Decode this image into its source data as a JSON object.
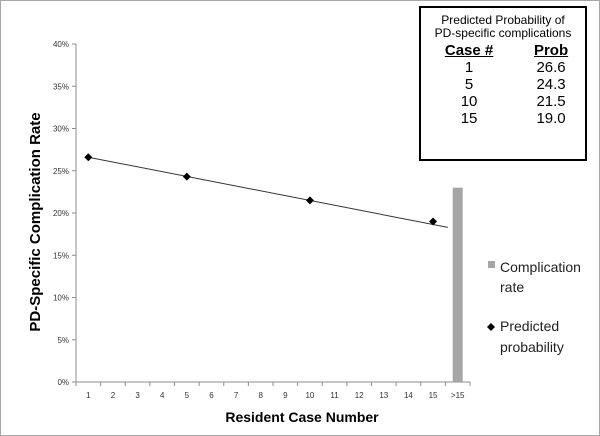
{
  "chart_data": {
    "type": "line",
    "title": "",
    "xlabel": "Resident Case Number",
    "ylabel": "PD-Specific Complication Rate",
    "categories": [
      "1",
      "2",
      "3",
      "4",
      "5",
      "6",
      "7",
      "8",
      "9",
      "10",
      "11",
      "12",
      "13",
      "14",
      "15",
      ">15"
    ],
    "y_ticks": [
      "0%",
      "5%",
      "10%",
      "15%",
      "20%",
      "25%",
      "30%",
      "35%",
      "40%"
    ],
    "ylim": [
      0,
      40
    ],
    "grid": false,
    "series": [
      {
        "name": "Predicted probability",
        "kind": "scatter",
        "marker": "diamond",
        "color": "#000000",
        "x": [
          1,
          5,
          10,
          15
        ],
        "y": [
          26.6,
          24.3,
          21.5,
          19.0
        ]
      },
      {
        "name": "Complication rate",
        "kind": "bar",
        "color": "#a6a6a6",
        "x": [
          ">15"
        ],
        "y": [
          23.0
        ]
      }
    ],
    "trendline": {
      "x": [
        1,
        15.6
      ],
      "y": [
        26.6,
        18.3
      ]
    },
    "legend": {
      "placement": "right",
      "items": [
        {
          "text_lines": [
            "Complication",
            "rate"
          ],
          "color": "#a6a6a6",
          "marker": "square"
        },
        {
          "text_lines": [
            "Predicted",
            "probability"
          ],
          "color": "#000000",
          "marker": "diamond"
        }
      ]
    }
  },
  "inset_table": {
    "title_line1": "Predicted Probability of",
    "title_line2": "PD-specific complications",
    "headers": [
      "Case #",
      "Prob"
    ],
    "rows": [
      [
        "1",
        "26.6"
      ],
      [
        "5",
        "24.3"
      ],
      [
        "10",
        "21.5"
      ],
      [
        "15",
        "19.0"
      ]
    ]
  }
}
